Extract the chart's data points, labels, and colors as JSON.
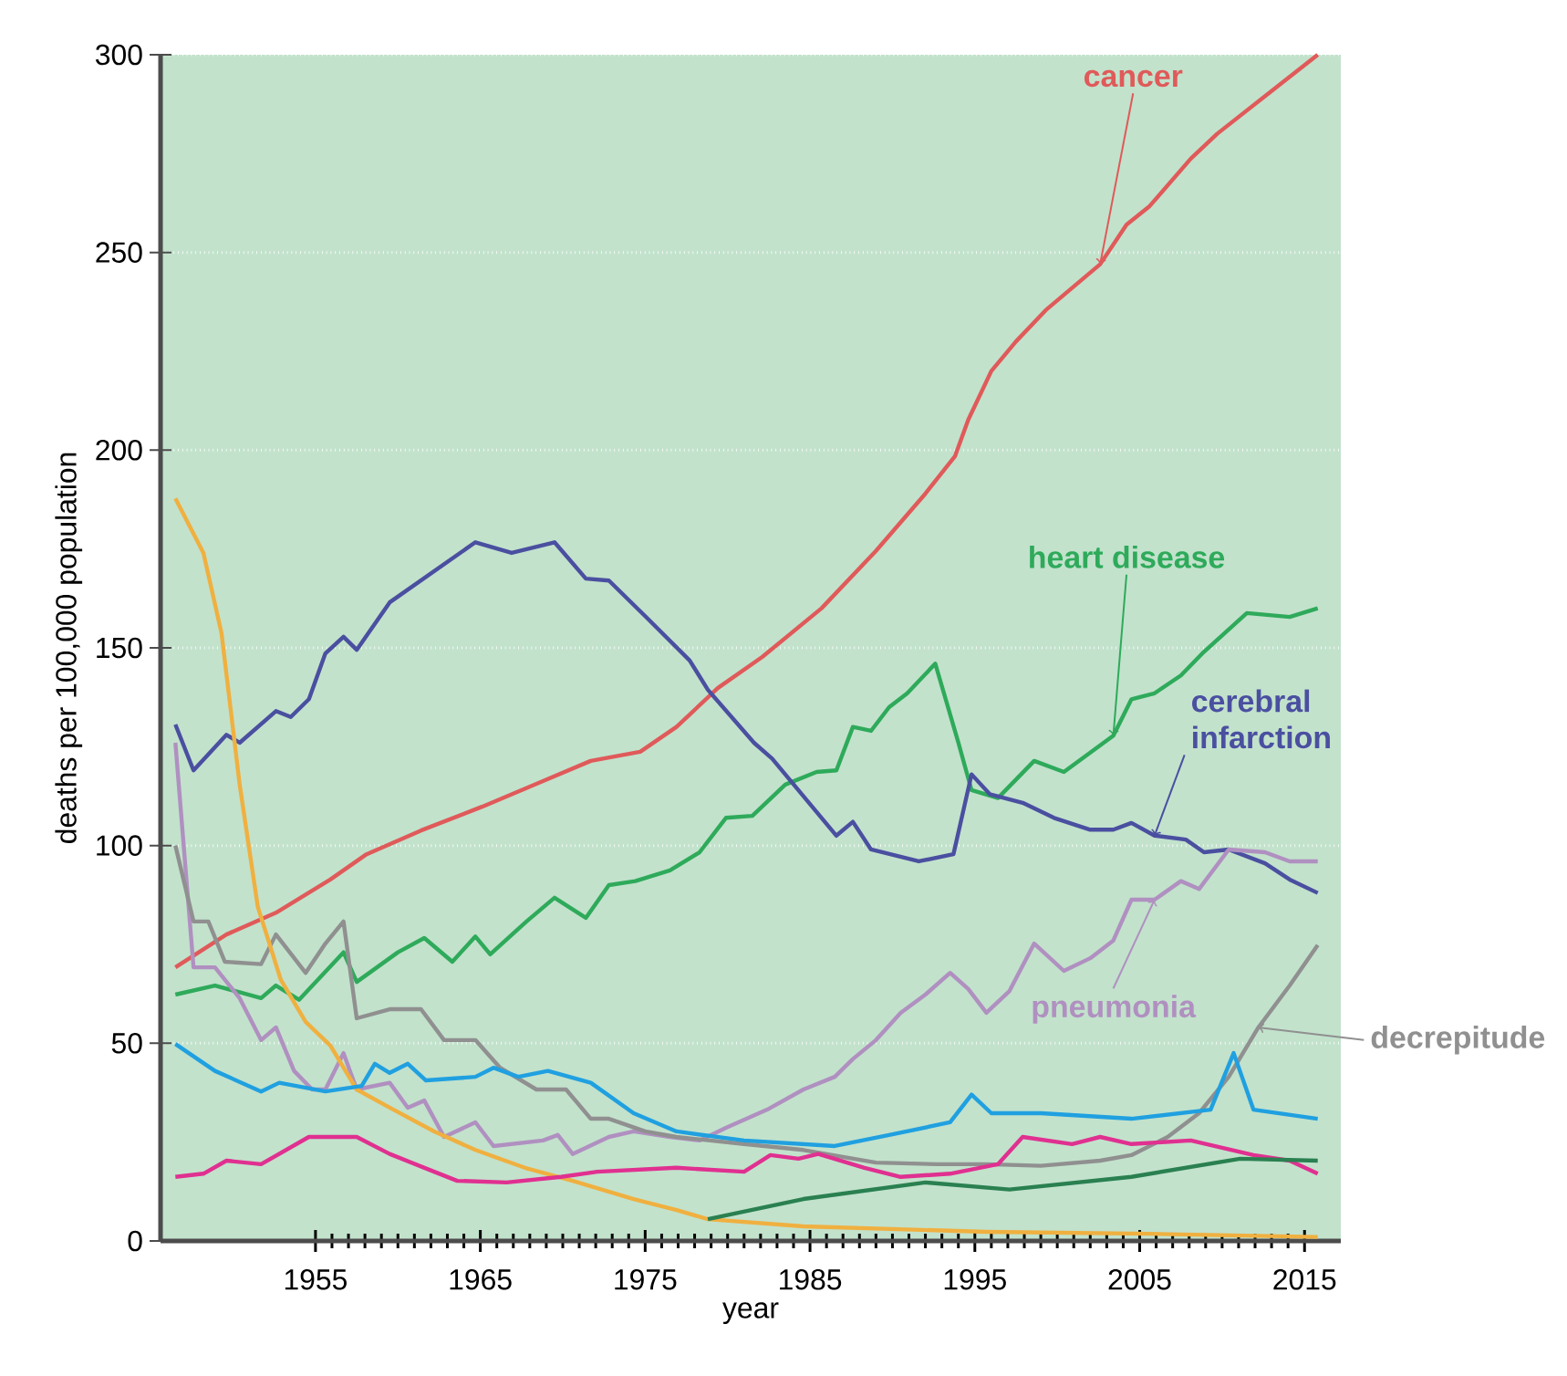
{
  "chart_data": {
    "type": "line",
    "xlabel": "year",
    "ylabel": "deaths per 100,000 population",
    "xlim": [
      1945.6,
      2017.2
    ],
    "ylim": [
      0,
      300
    ],
    "xticks": [
      1955,
      1965,
      1975,
      1985,
      1995,
      2005,
      2015
    ],
    "yticks": [
      0,
      50,
      100,
      150,
      200,
      250,
      300
    ],
    "grid": "y",
    "line_style": "solid",
    "series": [
      {
        "name": "cancer",
        "color": "#e05a5a",
        "x": [
          1946.5,
          1949.6,
          1952.6,
          1955.9,
          1958.1,
          1961.4,
          1965.1,
          1968.8,
          1971.7,
          1974.7,
          1976.9,
          1979.4,
          1982.1,
          1985.7,
          1989,
          1992,
          1993.8,
          1994.6,
          1996,
          1997.5,
          1999.3,
          2002.6,
          2004.2,
          2005.6,
          2008.1,
          2009.7,
          2013,
          2015.8
        ],
        "values": [
          69.2,
          77.5,
          83,
          91.4,
          97.8,
          103.8,
          109.8,
          116.3,
          121.4,
          123.7,
          130,
          139.8,
          147.7,
          160,
          174.5,
          189,
          198.5,
          207.7,
          220,
          227.5,
          235.4,
          247,
          257,
          261.7,
          273.7,
          280,
          290.8,
          300
        ]
      },
      {
        "name": "heart disease",
        "color": "#2eaa5a",
        "x": [
          1946.5,
          1948.9,
          1951.7,
          1952.6,
          1954,
          1956.7,
          1957.5,
          1960,
          1961.6,
          1963.3,
          1964.7,
          1965.6,
          1967.8,
          1969.5,
          1971.4,
          1972.8,
          1974.4,
          1976.5,
          1978.3,
          1979.9,
          1981.5,
          1983.5,
          1985.4,
          1986.6,
          1987.6,
          1988.7,
          1989.8,
          1990.9,
          1992.6,
          1994,
          1994.8,
          1996.4,
          1998.6,
          2000.4,
          2003.4,
          2004.5,
          2005.9,
          2007.5,
          2008.9,
          2011.5,
          2014.1,
          2015.8
        ],
        "values": [
          62.3,
          64.6,
          61.4,
          64.6,
          61,
          73,
          65.5,
          73,
          76.6,
          70.6,
          77,
          72.5,
          80.8,
          86.8,
          81.7,
          90,
          91,
          93.7,
          98.3,
          107,
          107.5,
          115.4,
          118.6,
          119,
          130,
          129,
          135,
          138.5,
          146,
          126,
          114,
          112,
          121.4,
          118.6,
          127.8,
          137,
          138.5,
          143,
          149,
          158.8,
          157.8,
          160
        ]
      },
      {
        "name": "cerebral infarction",
        "color": "#4a4fa0",
        "x": [
          1946.5,
          1947.6,
          1949.6,
          1950.4,
          1952.6,
          1953.5,
          1954.6,
          1955.6,
          1956.7,
          1957.5,
          1959.5,
          1964.7,
          1966.9,
          1969.5,
          1971.4,
          1972.8,
          1975,
          1977.7,
          1978.8,
          1981.6,
          1982.7,
          1986.6,
          1987.6,
          1988.7,
          1991.6,
          1993.7,
          1994.8,
          1995.9,
          1997.9,
          1999.8,
          2002,
          2003.4,
          2004.5,
          2005.9,
          2007.8,
          2008.9,
          2010.4,
          2012.6,
          2014.1,
          2015.8
        ],
        "values": [
          130.6,
          119,
          128,
          126,
          134,
          132.5,
          137,
          148.6,
          152.8,
          149.5,
          161.5,
          176.7,
          174,
          176.7,
          167.5,
          167,
          158,
          146.8,
          139.4,
          126,
          122,
          102.5,
          106,
          99,
          96,
          97.8,
          118,
          113,
          110.8,
          107,
          104,
          104,
          105.7,
          102.5,
          101.5,
          98.3,
          99,
          95.5,
          91.4,
          88
        ]
      },
      {
        "name": "pneumonia",
        "color": "#b090c0",
        "x": [
          1946.5,
          1947.6,
          1948.9,
          1950.4,
          1951.7,
          1952.6,
          1953.7,
          1954.8,
          1955.6,
          1956.7,
          1957.5,
          1959.5,
          1960.6,
          1961.6,
          1962.8,
          1964.7,
          1965.8,
          1968.8,
          1969.7,
          1970.6,
          1972.8,
          1974.3,
          1976.5,
          1978.3,
          1979.9,
          1982.4,
          1984.6,
          1986.5,
          1987.6,
          1989,
          1990.5,
          1992,
          1993.5,
          1994.6,
          1995.7,
          1997.1,
          1998.6,
          2000.4,
          2002,
          2003.4,
          2004.5,
          2005.9,
          2007.5,
          2008.6,
          2010.4,
          2012.6,
          2014.1,
          2015.8
        ],
        "values": [
          126,
          69.2,
          69.2,
          61.4,
          50.8,
          54,
          43,
          38.3,
          38.3,
          47.5,
          38.3,
          40,
          33.7,
          35.5,
          26.3,
          30,
          24,
          25.4,
          26.8,
          22,
          26.3,
          27.7,
          26.3,
          25.4,
          28.6,
          33.2,
          38.3,
          41.5,
          46,
          50.8,
          57.7,
          62.3,
          67.8,
          63.7,
          57.7,
          63.2,
          75.2,
          68.3,
          71.5,
          76,
          86.3,
          86.3,
          91,
          89,
          99,
          98.3,
          96,
          96
        ]
      },
      {
        "name": "decrepitude",
        "color": "#909090",
        "x": [
          1946.5,
          1947.6,
          1948.5,
          1949.5,
          1951.7,
          1952.6,
          1954.4,
          1955.6,
          1956.7,
          1957.5,
          1959.5,
          1961.4,
          1962.8,
          1964.7,
          1966.2,
          1968.4,
          1970.2,
          1971.7,
          1972.8,
          1975,
          1976.9,
          1981,
          1984.6,
          1989,
          1992.7,
          1995.7,
          1999,
          2002.6,
          2004.5,
          2006.7,
          2008.6,
          2010.4,
          2012.2,
          2014.1,
          2015.8
        ],
        "values": [
          100,
          80.8,
          80.8,
          70.6,
          70,
          77.5,
          67.8,
          75.2,
          80.8,
          56.3,
          58.6,
          58.6,
          50.8,
          50.8,
          43.8,
          38.3,
          38.3,
          30.9,
          30.9,
          27.7,
          26.3,
          24.5,
          23,
          19.8,
          19.4,
          19.4,
          19,
          20.3,
          21.7,
          26.3,
          32.3,
          41.5,
          54,
          64.6,
          74.8
        ]
      },
      {
        "color": "#f0b040",
        "x": [
          1946.5,
          1948.2,
          1949.3,
          1950.4,
          1951.5,
          1952.9,
          1954.4,
          1955.9,
          1957.5,
          1959.5,
          1962.2,
          1964.7,
          1967.7,
          1970.6,
          1974.3,
          1976.9,
          1978.8,
          1984.6,
          1995.7,
          2005.6,
          2015.8
        ],
        "values": [
          187.8,
          174,
          153.7,
          115.4,
          84.5,
          66,
          55.4,
          49.4,
          38.3,
          33.7,
          27.7,
          23,
          18.5,
          15.2,
          10.6,
          7.8,
          5.5,
          3.7,
          2.3,
          1.8,
          1
        ]
      },
      {
        "color": "#20a0e0",
        "x": [
          1946.5,
          1948.9,
          1951.7,
          1952.8,
          1955.6,
          1957.8,
          1958.6,
          1959.5,
          1960.6,
          1961.7,
          1964.7,
          1965.8,
          1967.3,
          1969.1,
          1971.7,
          1974.3,
          1976.9,
          1981,
          1986.5,
          1989.8,
          1993.5,
          1994.8,
          1996,
          1999,
          2004.5,
          2009.3,
          2010.7,
          2011.9,
          2015.8
        ],
        "values": [
          49.8,
          43,
          37.8,
          40,
          37.8,
          39.2,
          44.8,
          42.5,
          44.8,
          40.6,
          41.5,
          43.8,
          41.5,
          43,
          40,
          32.3,
          27.7,
          25.4,
          24,
          26.8,
          30,
          37,
          32.3,
          32.3,
          30.9,
          33.2,
          47.5,
          33.2,
          30.9
        ]
      },
      {
        "color": "#e03090",
        "x": [
          1946.5,
          1948.2,
          1949.6,
          1951.7,
          1954.6,
          1957.5,
          1959.5,
          1962.2,
          1963.6,
          1966.6,
          1969.9,
          1972.1,
          1976.9,
          1981,
          1982.6,
          1984.3,
          1985.5,
          1988.3,
          1990.5,
          1993.5,
          1996.4,
          1997.9,
          2000.9,
          2002.6,
          2004.5,
          2008.1,
          2011.9,
          2014.1,
          2015.8
        ],
        "values": [
          16.2,
          17,
          20.3,
          19.4,
          26.3,
          26.3,
          22,
          17.5,
          15.2,
          14.8,
          16.2,
          17.5,
          18.5,
          17.5,
          21.7,
          20.8,
          22,
          18.5,
          16.2,
          17,
          19.4,
          26.3,
          24.5,
          26.3,
          24.5,
          25.4,
          21.7,
          20.3,
          17
        ]
      },
      {
        "color": "#2a8050",
        "x": [
          1978.8,
          1984.6,
          1992,
          1997.1,
          2004.5,
          2011.1,
          2015.8
        ],
        "values": [
          5.5,
          10.6,
          14.8,
          13,
          16.2,
          20.8,
          20.3
        ]
      }
    ]
  }
}
